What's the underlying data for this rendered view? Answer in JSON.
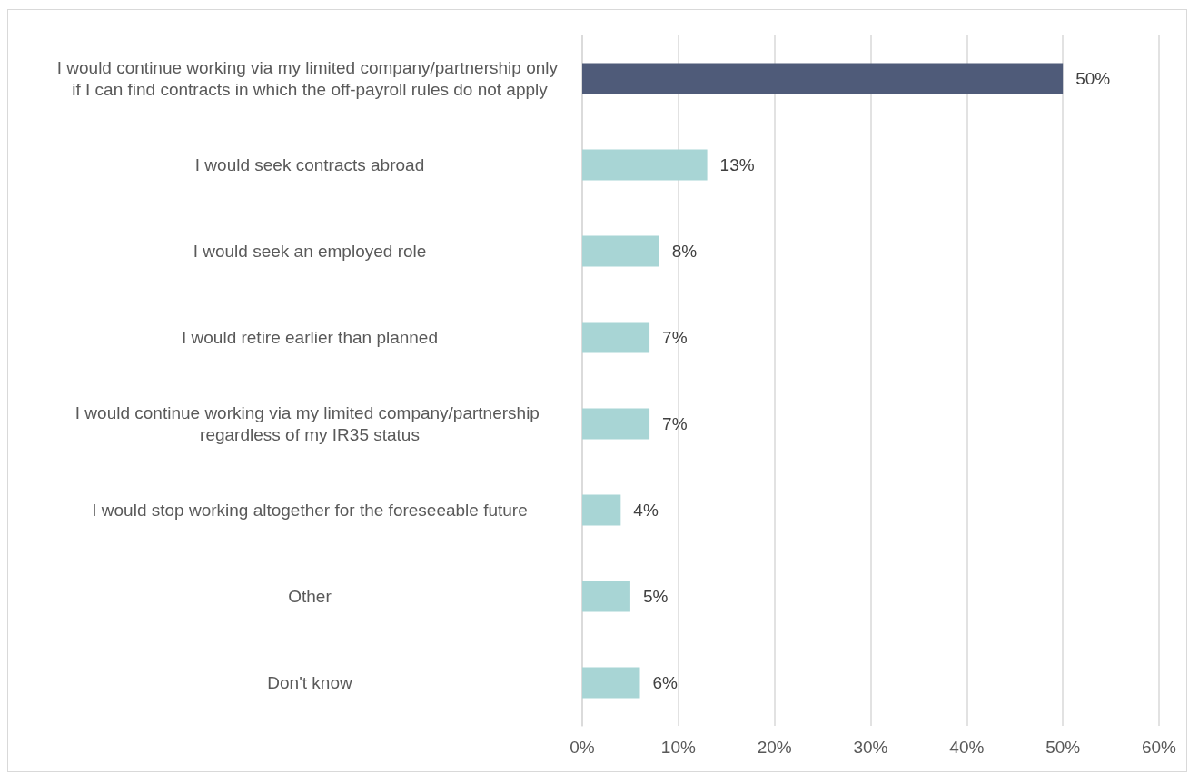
{
  "chart_data": {
    "type": "bar",
    "orientation": "horizontal",
    "categories": [
      "I would continue working via my limited company/partnership only if I can find contracts in which the off-payroll rules do not apply",
      "I would seek contracts abroad",
      "I would seek an employed role",
      "I would retire earlier than planned",
      "I would continue working via my limited company/partnership regardless of my IR35 status",
      "I would stop working altogether for the foreseeable future",
      "Other",
      "Don't know"
    ],
    "values": [
      50,
      13,
      8,
      7,
      7,
      4,
      5,
      6
    ],
    "value_labels": [
      "50%",
      "13%",
      "8%",
      "7%",
      "7%",
      "4%",
      "5%",
      "6%"
    ],
    "colors": [
      "#4f5b79",
      "#a8d5d5",
      "#a8d5d5",
      "#a8d5d5",
      "#a8d5d5",
      "#a8d5d5",
      "#a8d5d5",
      "#a8d5d5"
    ],
    "xlim": [
      0,
      60
    ],
    "xticks": [
      {
        "value": 0,
        "label": "0%"
      },
      {
        "value": 10,
        "label": "10%"
      },
      {
        "value": 20,
        "label": "20%"
      },
      {
        "value": 30,
        "label": "30%"
      },
      {
        "value": 40,
        "label": "40%"
      },
      {
        "value": 50,
        "label": "50%"
      },
      {
        "value": 60,
        "label": "60%"
      }
    ],
    "grid": "x"
  }
}
